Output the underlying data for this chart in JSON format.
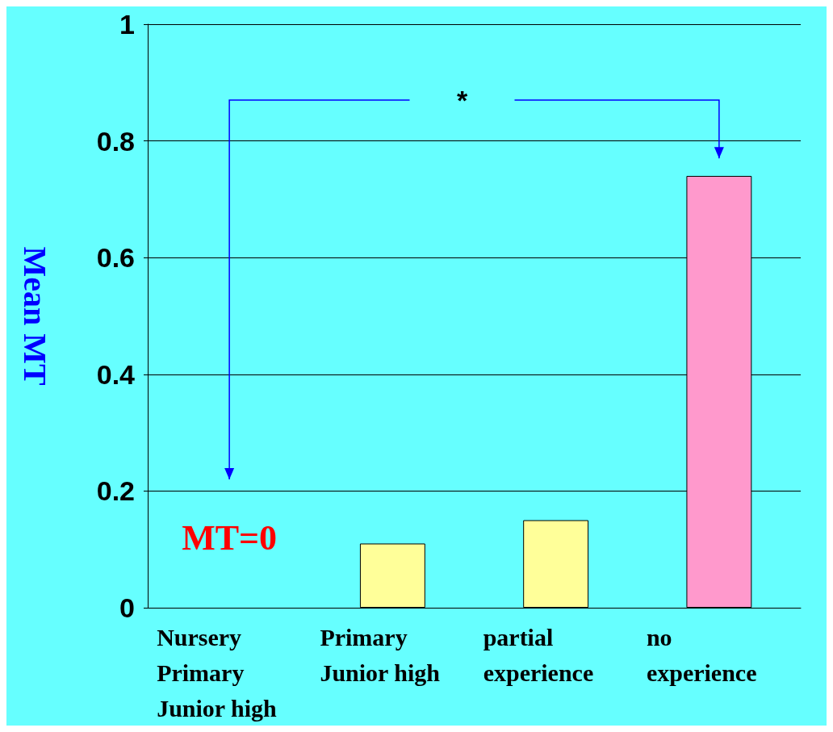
{
  "chart_data": {
    "type": "bar",
    "ylabel": "Mean MT",
    "categories": [
      "Nursery\nPrimary\nJunior high",
      "Primary\nJunior high",
      "partial\nexperience",
      "no\nexperience"
    ],
    "values": [
      0,
      0.11,
      0.15,
      0.74
    ],
    "colors": [
      "#cc6600",
      "#ffff99",
      "#ffff99",
      "#ff99cc"
    ],
    "ylim": [
      0,
      1
    ],
    "yticks": [
      0,
      0.2,
      0.4,
      0.6,
      0.8,
      1
    ],
    "grid": "y",
    "annotations": [
      "MT=0",
      "*"
    ]
  }
}
